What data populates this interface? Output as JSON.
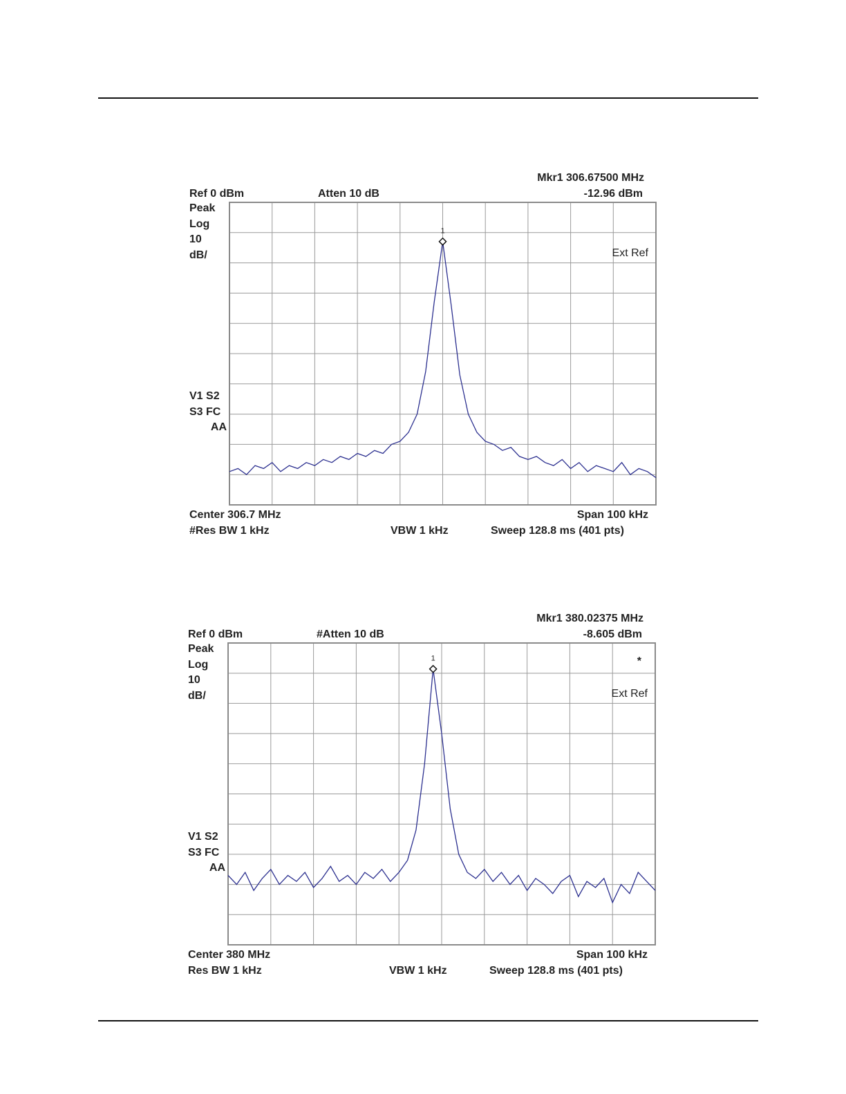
{
  "chart_data": [
    {
      "type": "line",
      "color": "#2b2f8f",
      "ylim": [
        -100,
        0
      ],
      "yticks": [
        -100,
        -90,
        -80,
        -70,
        -60,
        -50,
        -40,
        -30,
        -20,
        -10,
        0
      ],
      "xlim": [
        0,
        100
      ],
      "xticks": [
        0,
        10,
        20,
        30,
        40,
        50,
        60,
        70,
        80,
        90,
        100
      ],
      "grid": true,
      "annotations": {
        "ref": "Ref 0 dBm",
        "atten": "Atten 10 dB",
        "mkr": "Mkr1  306.67500 MHz",
        "mkr_value": "-12.96 dBm",
        "peak": "Peak",
        "log": "Log",
        "scale": "10",
        "unit": "dB/",
        "v1": "V1  S2",
        "s3": "S3  FC",
        "aa": "AA",
        "ext_ref": "Ext Ref",
        "center": "Center 306.7 MHz",
        "span": "Span 100 kHz",
        "res_bw": "#Res BW 1 kHz",
        "vbw": "VBW 1 kHz",
        "sweep": "Sweep 128.8 ms (401 pts)"
      },
      "marker": {
        "label": "1",
        "index": 25
      },
      "x": [
        0,
        2,
        4,
        6,
        8,
        10,
        12,
        14,
        16,
        18,
        20,
        22,
        24,
        26,
        28,
        30,
        32,
        34,
        36,
        38,
        40,
        42,
        44,
        46,
        48,
        50,
        52,
        54,
        56,
        58,
        60,
        62,
        64,
        66,
        68,
        70,
        72,
        74,
        76,
        78,
        80,
        82,
        84,
        86,
        88,
        90,
        92,
        94,
        96,
        98,
        100
      ],
      "values": [
        -89,
        -88,
        -90,
        -87,
        -88,
        -86,
        -89,
        -87,
        -88,
        -86,
        -87,
        -85,
        -86,
        -84,
        -85,
        -83,
        -84,
        -82,
        -83,
        -80,
        -79,
        -76,
        -70,
        -56,
        -33,
        -12.96,
        -34,
        -57,
        -70,
        -76,
        -79,
        -80,
        -82,
        -81,
        -84,
        -85,
        -84,
        -86,
        -87,
        -85,
        -88,
        -86,
        -89,
        -87,
        -88,
        -89,
        -86,
        -90,
        -88,
        -89,
        -91
      ]
    },
    {
      "type": "line",
      "color": "#2b2f8f",
      "ylim": [
        -100,
        0
      ],
      "yticks": [
        -100,
        -90,
        -80,
        -70,
        -60,
        -50,
        -40,
        -30,
        -20,
        -10,
        0
      ],
      "xlim": [
        0,
        100
      ],
      "xticks": [
        0,
        10,
        20,
        30,
        40,
        50,
        60,
        70,
        80,
        90,
        100
      ],
      "grid": true,
      "annotations": {
        "ref": "Ref 0 dBm",
        "atten": "#Atten 10 dB",
        "mkr": "Mkr1  380.02375 MHz",
        "mkr_value": "-8.605 dBm",
        "peak": "Peak",
        "log": "Log",
        "scale": "10",
        "unit": "dB/",
        "v1": "V1  S2",
        "s3": "S3  FC",
        "aa": "AA",
        "star": "*",
        "ext_ref": "Ext Ref",
        "center": "Center 380 MHz",
        "span": "Span 100 kHz",
        "res_bw": "Res BW 1 kHz",
        "vbw": "VBW 1 kHz",
        "sweep": "Sweep 128.8 ms (401 pts)"
      },
      "marker": {
        "label": "1",
        "index": 24
      },
      "x": [
        0,
        2,
        4,
        6,
        8,
        10,
        12,
        14,
        16,
        18,
        20,
        22,
        24,
        26,
        28,
        30,
        32,
        34,
        36,
        38,
        40,
        42,
        44,
        46,
        48,
        50,
        52,
        54,
        56,
        58,
        60,
        62,
        64,
        66,
        68,
        70,
        72,
        74,
        76,
        78,
        80,
        82,
        84,
        86,
        88,
        90,
        92,
        94,
        96,
        98,
        100
      ],
      "values": [
        -77,
        -80,
        -76,
        -82,
        -78,
        -75,
        -80,
        -77,
        -79,
        -76,
        -81,
        -78,
        -74,
        -79,
        -77,
        -80,
        -76,
        -78,
        -75,
        -79,
        -76,
        -72,
        -62,
        -40,
        -8.605,
        -30,
        -55,
        -70,
        -76,
        -78,
        -75,
        -79,
        -76,
        -80,
        -77,
        -82,
        -78,
        -80,
        -83,
        -79,
        -77,
        -84,
        -79,
        -81,
        -78,
        -86,
        -80,
        -83,
        -76,
        -79,
        -82
      ]
    }
  ]
}
